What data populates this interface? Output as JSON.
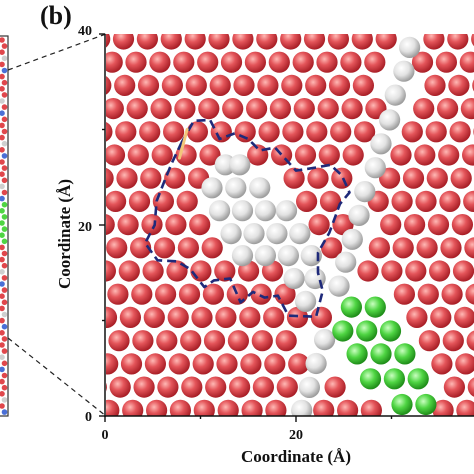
{
  "figure": {
    "panel_label": "(b)",
    "xlabel": "Coordinate (Å)",
    "ylabel": "Coordinate (Å)",
    "xticks": [
      "0",
      "20"
    ],
    "yticks": [
      "0",
      "20",
      "40"
    ]
  },
  "colors": {
    "red_atom": "#e0474c",
    "white_atom": "#e6e6e6",
    "green_atom": "#49d43f",
    "boundary": "#1f2a7a",
    "highlight_bond": "#f2c77a",
    "zoom_lines": "#222222",
    "left_panel_frame": "#333333"
  },
  "boundary_path": [
    [
      8,
      28.6
    ],
    [
      9.3,
      30.9
    ],
    [
      11,
      31
    ],
    [
      12,
      29
    ],
    [
      13.6,
      29.6
    ],
    [
      15,
      29
    ],
    [
      16.2,
      27.8
    ],
    [
      17.8,
      28.1
    ],
    [
      20,
      25.7
    ],
    [
      22,
      26
    ],
    [
      23.6,
      26.3
    ],
    [
      24.8,
      25.2
    ],
    [
      25.6,
      23.4
    ],
    [
      24.6,
      22.2
    ],
    [
      23.5,
      19.2
    ],
    [
      22.3,
      17.1
    ],
    [
      22.3,
      15
    ],
    [
      22.8,
      13.1
    ],
    [
      22.1,
      10.4
    ],
    [
      19.2,
      10.5
    ],
    [
      18.1,
      12.6
    ],
    [
      16.7,
      12.4
    ],
    [
      15.5,
      13
    ],
    [
      14.2,
      11.9
    ],
    [
      13.1,
      14.4
    ],
    [
      11.4,
      14.2
    ],
    [
      10.4,
      13.5
    ],
    [
      8.9,
      15.4
    ],
    [
      7.5,
      16.2
    ],
    [
      5.5,
      16.3
    ],
    [
      4.2,
      18.1
    ],
    [
      5.2,
      20
    ],
    [
      5.4,
      22.5
    ],
    [
      6.3,
      24.8
    ],
    [
      7,
      26.5
    ],
    [
      8,
      28.6
    ]
  ],
  "atoms": {
    "white_centers": [
      [
        31.9,
        38.6
      ],
      [
        31.3,
        36.1
      ],
      [
        30.4,
        33.6
      ],
      [
        29.8,
        31.0
      ],
      [
        28.9,
        28.5
      ],
      [
        28.3,
        26.0
      ],
      [
        27.2,
        23.5
      ],
      [
        26.6,
        21.0
      ],
      [
        25.9,
        18.5
      ],
      [
        25.2,
        16.1
      ],
      [
        24.5,
        13.6
      ],
      [
        23.0,
        8.0
      ],
      [
        22.1,
        5.5
      ],
      [
        21.4,
        3.0
      ],
      [
        20.6,
        0.6
      ],
      [
        12.6,
        26.3
      ],
      [
        14.1,
        26.3
      ],
      [
        11.2,
        23.9
      ],
      [
        13.7,
        23.9
      ],
      [
        16.2,
        23.9
      ],
      [
        12.0,
        21.5
      ],
      [
        14.4,
        21.5
      ],
      [
        16.8,
        21.5
      ],
      [
        19.0,
        21.5
      ],
      [
        13.2,
        19.1
      ],
      [
        15.6,
        19.1
      ],
      [
        18.0,
        19.1
      ],
      [
        20.4,
        19.1
      ],
      [
        14.4,
        16.8
      ],
      [
        16.8,
        16.8
      ],
      [
        19.2,
        16.8
      ],
      [
        21.6,
        16.8
      ],
      [
        19.8,
        14.4
      ],
      [
        22.0,
        14.4
      ],
      [
        21.0,
        12.0
      ]
    ],
    "green_centers": [
      [
        25.8,
        11.4
      ],
      [
        28.3,
        11.4
      ],
      [
        24.9,
        8.9
      ],
      [
        27.4,
        8.9
      ],
      [
        29.9,
        8.9
      ],
      [
        26.4,
        6.5
      ],
      [
        28.9,
        6.5
      ],
      [
        31.4,
        6.5
      ],
      [
        27.8,
        3.9
      ],
      [
        30.3,
        3.9
      ],
      [
        32.8,
        3.9
      ],
      [
        33.6,
        1.2
      ],
      [
        31.1,
        1.2
      ]
    ]
  }
}
